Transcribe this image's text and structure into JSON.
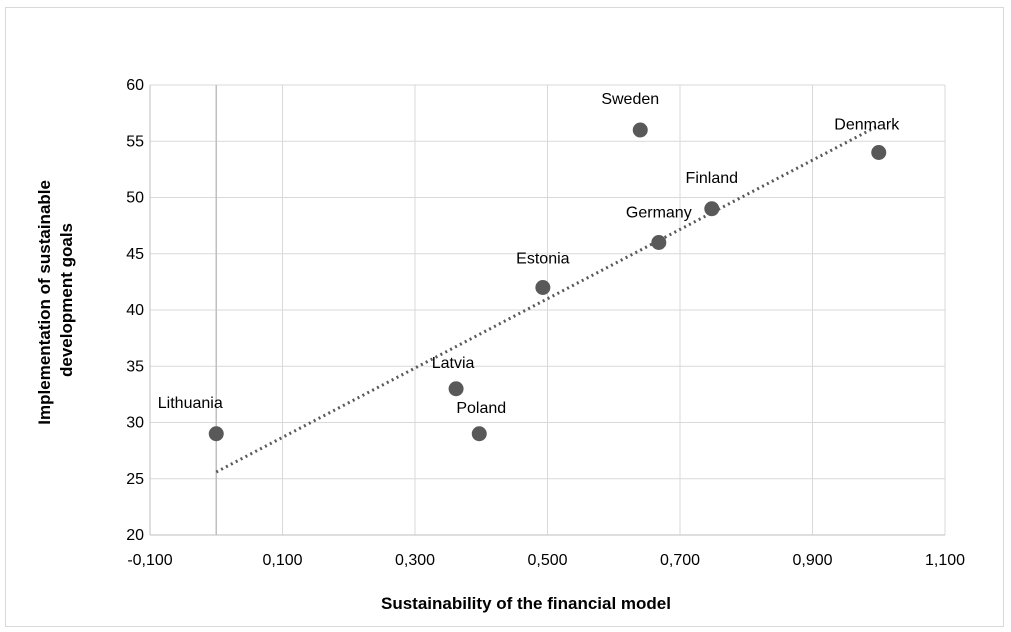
{
  "chart_data": {
    "type": "scatter",
    "title": "",
    "xlabel": "Sustainability of the financial model",
    "ylabel_lines": [
      "Implementation of sustainable",
      "development goals"
    ],
    "xlim": [
      -0.1,
      1.1
    ],
    "ylim": [
      20,
      60
    ],
    "x_ticks": [
      -0.1,
      0.1,
      0.3,
      0.5,
      0.7,
      0.9,
      1.1
    ],
    "x_tick_labels": [
      "-0,100",
      "0,100",
      "0,300",
      "0,500",
      "0,700",
      "0,900",
      "1,100"
    ],
    "y_ticks": [
      20,
      25,
      30,
      35,
      40,
      45,
      50,
      55,
      60
    ],
    "y_tick_labels": [
      "20",
      "25",
      "30",
      "35",
      "40",
      "45",
      "50",
      "55",
      "60"
    ],
    "grid": true,
    "points": [
      {
        "label": "Lithuania",
        "x": 0.0,
        "y": 29
      },
      {
        "label": "Latvia",
        "x": 0.362,
        "y": 33
      },
      {
        "label": "Poland",
        "x": 0.397,
        "y": 29
      },
      {
        "label": "Estonia",
        "x": 0.493,
        "y": 42
      },
      {
        "label": "Sweden",
        "x": 0.64,
        "y": 56
      },
      {
        "label": "Germany",
        "x": 0.668,
        "y": 46
      },
      {
        "label": "Finland",
        "x": 0.748,
        "y": 49
      },
      {
        "label": "Denmark",
        "x": 1.0,
        "y": 54
      }
    ],
    "trendline": {
      "type": "linear",
      "x": [
        0.0,
        1.0
      ],
      "y": [
        25.6,
        56.4
      ],
      "style": "dotted"
    },
    "colors": {
      "marker": "#595959",
      "trendline": "#595959",
      "grid": "#d9d9d9",
      "axis": "#bfbfbf"
    }
  }
}
